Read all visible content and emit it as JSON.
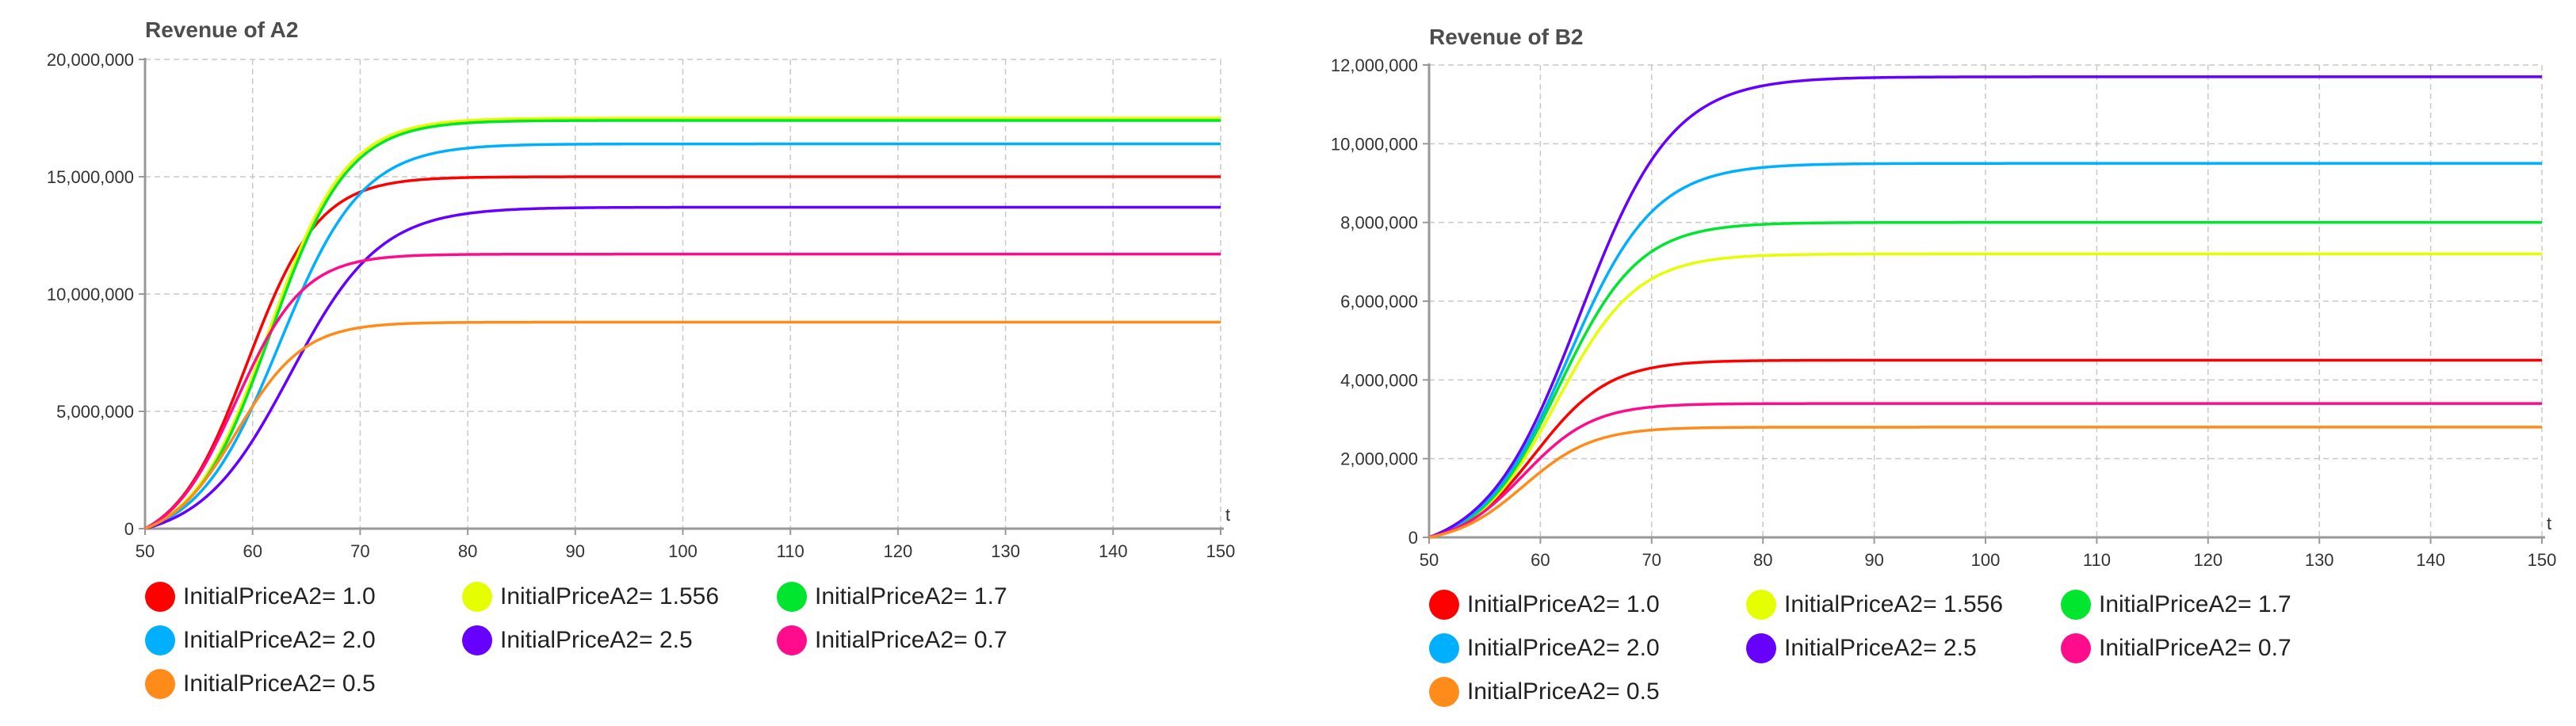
{
  "chart_data": [
    {
      "type": "line",
      "title": "Revenue of A2",
      "xlabel": "t",
      "ylabel": "",
      "xlim": [
        50,
        150
      ],
      "ylim": [
        0,
        20000000
      ],
      "xticks": [
        50,
        60,
        70,
        80,
        90,
        100,
        110,
        120,
        130,
        140,
        150
      ],
      "yticks": [
        0,
        5000000,
        10000000,
        15000000,
        20000000
      ],
      "ytick_labels": [
        "0",
        "5,000,000",
        "10,000,000",
        "15,000,000",
        "20,000,000"
      ],
      "grid": true,
      "legend_position": "bottom",
      "series": [
        {
          "name": "InitialPriceA2= 1.0",
          "color": "#ff0000",
          "final": 15000000,
          "midpoint": 59.5,
          "rate": 0.3
        },
        {
          "name": "InitialPriceA2= 1.556",
          "color": "#e5ff00",
          "final": 17500000,
          "midpoint": 61.5,
          "rate": 0.28
        },
        {
          "name": "InitialPriceA2= 1.7",
          "color": "#00e52e",
          "final": 17400000,
          "midpoint": 61.7,
          "rate": 0.28
        },
        {
          "name": "InitialPriceA2= 2.0",
          "color": "#00b0ff",
          "final": 16400000,
          "midpoint": 62.5,
          "rate": 0.26
        },
        {
          "name": "InitialPriceA2= 2.5",
          "color": "#6600ff",
          "final": 13700000,
          "midpoint": 63.5,
          "rate": 0.24
        },
        {
          "name": "InitialPriceA2= 0.7",
          "color": "#ff0c8c",
          "final": 11700000,
          "midpoint": 58.5,
          "rate": 0.32
        },
        {
          "name": "InitialPriceA2= 0.5",
          "color": "#ff8c1a",
          "final": 8800000,
          "midpoint": 58.5,
          "rate": 0.32
        }
      ]
    },
    {
      "type": "line",
      "title": "Revenue of B2",
      "xlabel": "t",
      "ylabel": "",
      "xlim": [
        50,
        150
      ],
      "ylim": [
        0,
        12000000
      ],
      "xticks": [
        50,
        60,
        70,
        80,
        90,
        100,
        110,
        120,
        130,
        140,
        150
      ],
      "yticks": [
        0,
        2000000,
        4000000,
        6000000,
        8000000,
        10000000,
        12000000
      ],
      "ytick_labels": [
        "0",
        "2,000,000",
        "4,000,000",
        "6,000,000",
        "8,000,000",
        "10,000,000",
        "12,000,000"
      ],
      "grid": true,
      "legend_position": "bottom",
      "series": [
        {
          "name": "InitialPriceA2= 1.0",
          "color": "#ff0000",
          "final": 4500000,
          "midpoint": 59.5,
          "rate": 0.3
        },
        {
          "name": "InitialPriceA2= 1.556",
          "color": "#e5ff00",
          "final": 7200000,
          "midpoint": 61.5,
          "rate": 0.28
        },
        {
          "name": "InitialPriceA2= 1.7",
          "color": "#00e52e",
          "final": 8000000,
          "midpoint": 61.7,
          "rate": 0.28
        },
        {
          "name": "InitialPriceA2= 2.0",
          "color": "#00b0ff",
          "final": 9500000,
          "midpoint": 62.5,
          "rate": 0.26
        },
        {
          "name": "InitialPriceA2= 2.5",
          "color": "#6600ff",
          "final": 11700000,
          "midpoint": 63.5,
          "rate": 0.24
        },
        {
          "name": "InitialPriceA2= 0.7",
          "color": "#ff0c8c",
          "final": 3400000,
          "midpoint": 58.5,
          "rate": 0.32
        },
        {
          "name": "InitialPriceA2= 0.5",
          "color": "#ff8c1a",
          "final": 2800000,
          "midpoint": 58.5,
          "rate": 0.32
        }
      ]
    }
  ]
}
